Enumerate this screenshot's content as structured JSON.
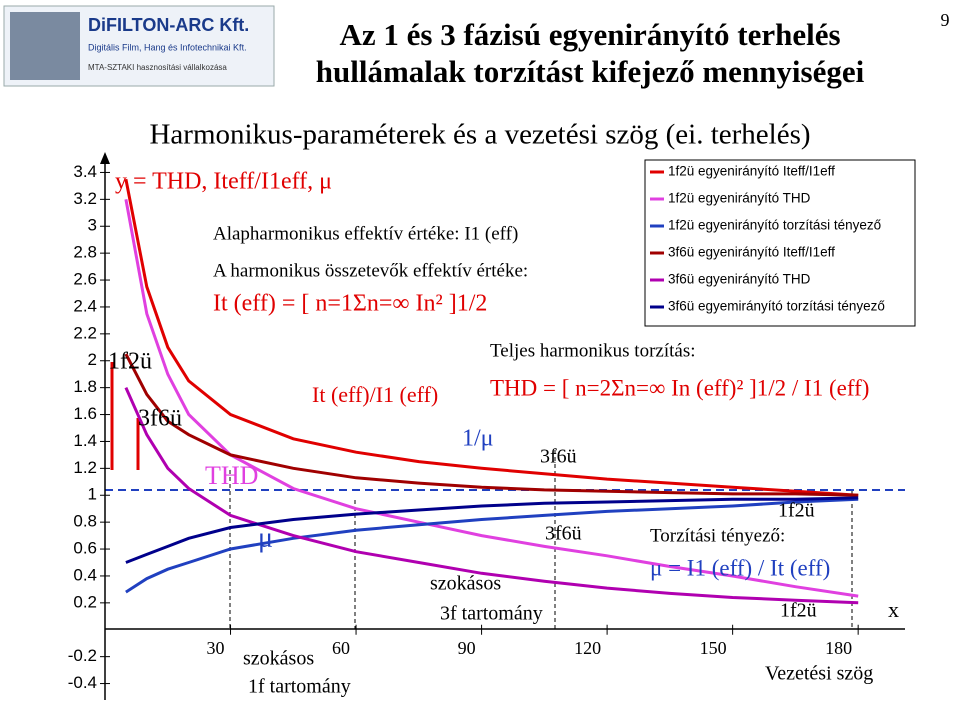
{
  "header": {
    "title_lines": [
      "Az 1 és 3 fázisú egyenirányító terhelés",
      "hullámalak torzítást kifejező mennyiségei"
    ],
    "page_number": "9",
    "logo": [
      "DiFILTON-ARC Kft.",
      "Digitális Film, Hang és Infotechnikai Kft.",
      "MTA-SZTAKI hasznosítási vállalkozása"
    ]
  },
  "chart_data": {
    "type": "line",
    "title": "Harmonikus-paraméterek és a vezetési szög (ei. terhelés)",
    "x": [
      5,
      10,
      15,
      20,
      30,
      45,
      60,
      75,
      90,
      105,
      120,
      135,
      150,
      165,
      180
    ],
    "series": [
      {
        "name": "1f2ü egyenirányító Iteff/I1eff",
        "color": "#e00000",
        "values": [
          3.35,
          2.55,
          2.1,
          1.85,
          1.6,
          1.42,
          1.32,
          1.25,
          1.2,
          1.16,
          1.12,
          1.09,
          1.06,
          1.03,
          1.0
        ]
      },
      {
        "name": "1f2ü egyenirányító THD",
        "color": "#e040e0",
        "values": [
          3.2,
          2.35,
          1.9,
          1.6,
          1.3,
          1.05,
          0.9,
          0.8,
          0.7,
          0.62,
          0.55,
          0.47,
          0.4,
          0.32,
          0.25
        ]
      },
      {
        "name": "1f2ü egyenirányító torzítási tényező",
        "color": "#2040c0",
        "values": [
          0.28,
          0.38,
          0.45,
          0.5,
          0.6,
          0.68,
          0.74,
          0.78,
          0.82,
          0.85,
          0.88,
          0.9,
          0.92,
          0.95,
          0.97
        ]
      },
      {
        "name": "3f6ü egyenirányító Iteff/I1eff",
        "color": "#a00000",
        "values": [
          2.05,
          1.75,
          1.55,
          1.45,
          1.3,
          1.2,
          1.13,
          1.09,
          1.06,
          1.04,
          1.03,
          1.02,
          1.01,
          1.01,
          1.0
        ]
      },
      {
        "name": "3f6ü egyenirányító THD",
        "color": "#b000b0",
        "values": [
          1.8,
          1.45,
          1.2,
          1.05,
          0.85,
          0.7,
          0.58,
          0.5,
          0.42,
          0.36,
          0.31,
          0.27,
          0.24,
          0.22,
          0.2
        ]
      },
      {
        "name": "3f6ü egyemirányító torzítási tényező",
        "color": "#00008b",
        "values": [
          0.5,
          0.56,
          0.62,
          0.68,
          0.76,
          0.82,
          0.86,
          0.89,
          0.92,
          0.94,
          0.95,
          0.96,
          0.97,
          0.97,
          0.98
        ]
      }
    ],
    "xlim": [
      0,
      190
    ],
    "ylim": [
      -0.5,
      3.5
    ],
    "xticks": [
      30,
      60,
      90,
      120,
      150,
      180
    ],
    "yticks": [
      3.4,
      3.2,
      3,
      2.8,
      2.6,
      2.4,
      2.2,
      2,
      1.8,
      1.6,
      1.4,
      1.2,
      1,
      0.8,
      0.6,
      0.4,
      0.2,
      -0.2,
      -0.4
    ],
    "annotations": [
      "y = THD, Iteff/I1eff, μ",
      "Alapharmonikus effektív értéke: I1 (eff)",
      "A harmonikus összetevők effektív értéke:",
      "It (eff) = [ n=1Σn=∞ In² ]1/2",
      "Teljes harmonikus torzítás:",
      "THD = [ n=2Σn=∞ In (eff)² ]1/2 / I1 (eff)",
      "It (eff)/I1 (eff)",
      "1/μ",
      "1f2ü",
      "3f6ü",
      "THD",
      "μ",
      "3f6ü",
      "3f6ü",
      "1f2ü",
      "Torzítási tényező:",
      "μ = I1 (eff) / It (eff)",
      "szokásos",
      "3f tartomány",
      "1f2ü",
      "x",
      "szokásos",
      "1f tartomány",
      "Vezetési szög"
    ]
  }
}
